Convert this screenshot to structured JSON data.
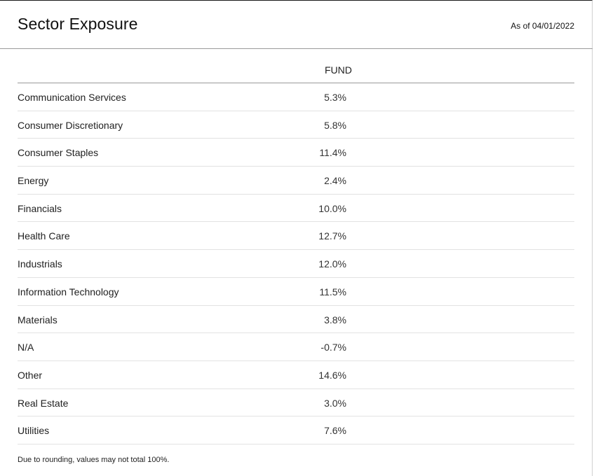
{
  "header": {
    "title": "Sector Exposure",
    "as_of": "As of 04/01/2022"
  },
  "table": {
    "column_header": "FUND",
    "rows": [
      {
        "sector": "Communication Services",
        "fund": "5.3%"
      },
      {
        "sector": "Consumer Discretionary",
        "fund": "5.8%"
      },
      {
        "sector": "Consumer Staples",
        "fund": "11.4%"
      },
      {
        "sector": "Energy",
        "fund": "2.4%"
      },
      {
        "sector": "Financials",
        "fund": "10.0%"
      },
      {
        "sector": "Health Care",
        "fund": "12.7%"
      },
      {
        "sector": "Industrials",
        "fund": "12.0%"
      },
      {
        "sector": "Information Technology",
        "fund": "11.5%"
      },
      {
        "sector": "Materials",
        "fund": "3.8%"
      },
      {
        "sector": "N/A",
        "fund": "-0.7%"
      },
      {
        "sector": "Other",
        "fund": "14.6%"
      },
      {
        "sector": "Real Estate",
        "fund": "3.0%"
      },
      {
        "sector": "Utilities",
        "fund": "7.6%"
      }
    ]
  },
  "footnote": "Due to rounding, values may not total 100%."
}
